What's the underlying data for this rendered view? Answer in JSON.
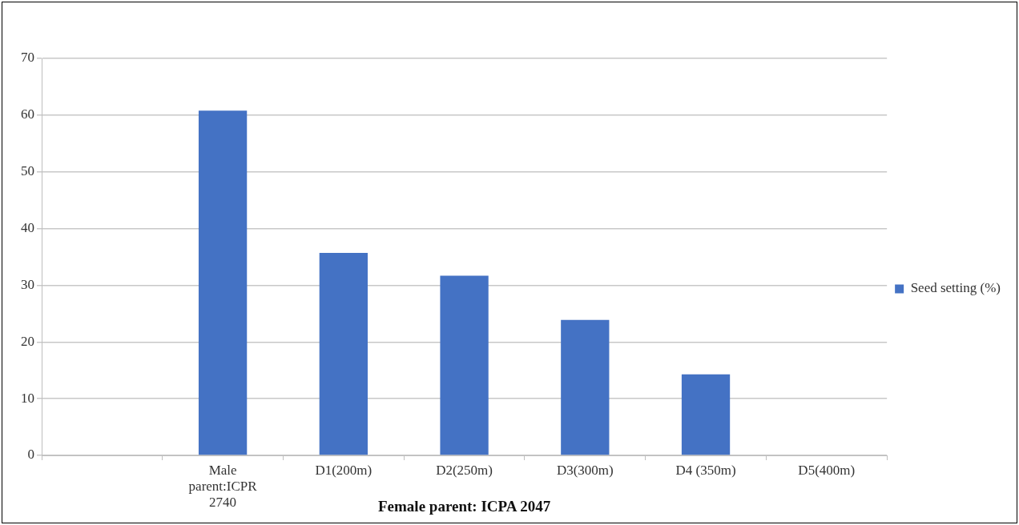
{
  "chart_data": {
    "type": "bar",
    "xlabel": "Female parent: ICPA 2047",
    "categories": [
      null,
      "Male parent:ICPR 2740",
      "D1(200m)",
      "D2(250m)",
      "D3(300m)",
      "D4 (350m)",
      "D5(400m)"
    ],
    "series": [
      {
        "name": "Seed setting (%)",
        "color": "#4472c4",
        "values": [
          null,
          60.8,
          35.7,
          31.7,
          23.9,
          14.3,
          0
        ]
      }
    ],
    "ylim": [
      0,
      70
    ],
    "yticks": [
      0,
      10,
      20,
      30,
      40,
      50,
      60,
      70
    ],
    "grid": "y",
    "legend": "right"
  }
}
